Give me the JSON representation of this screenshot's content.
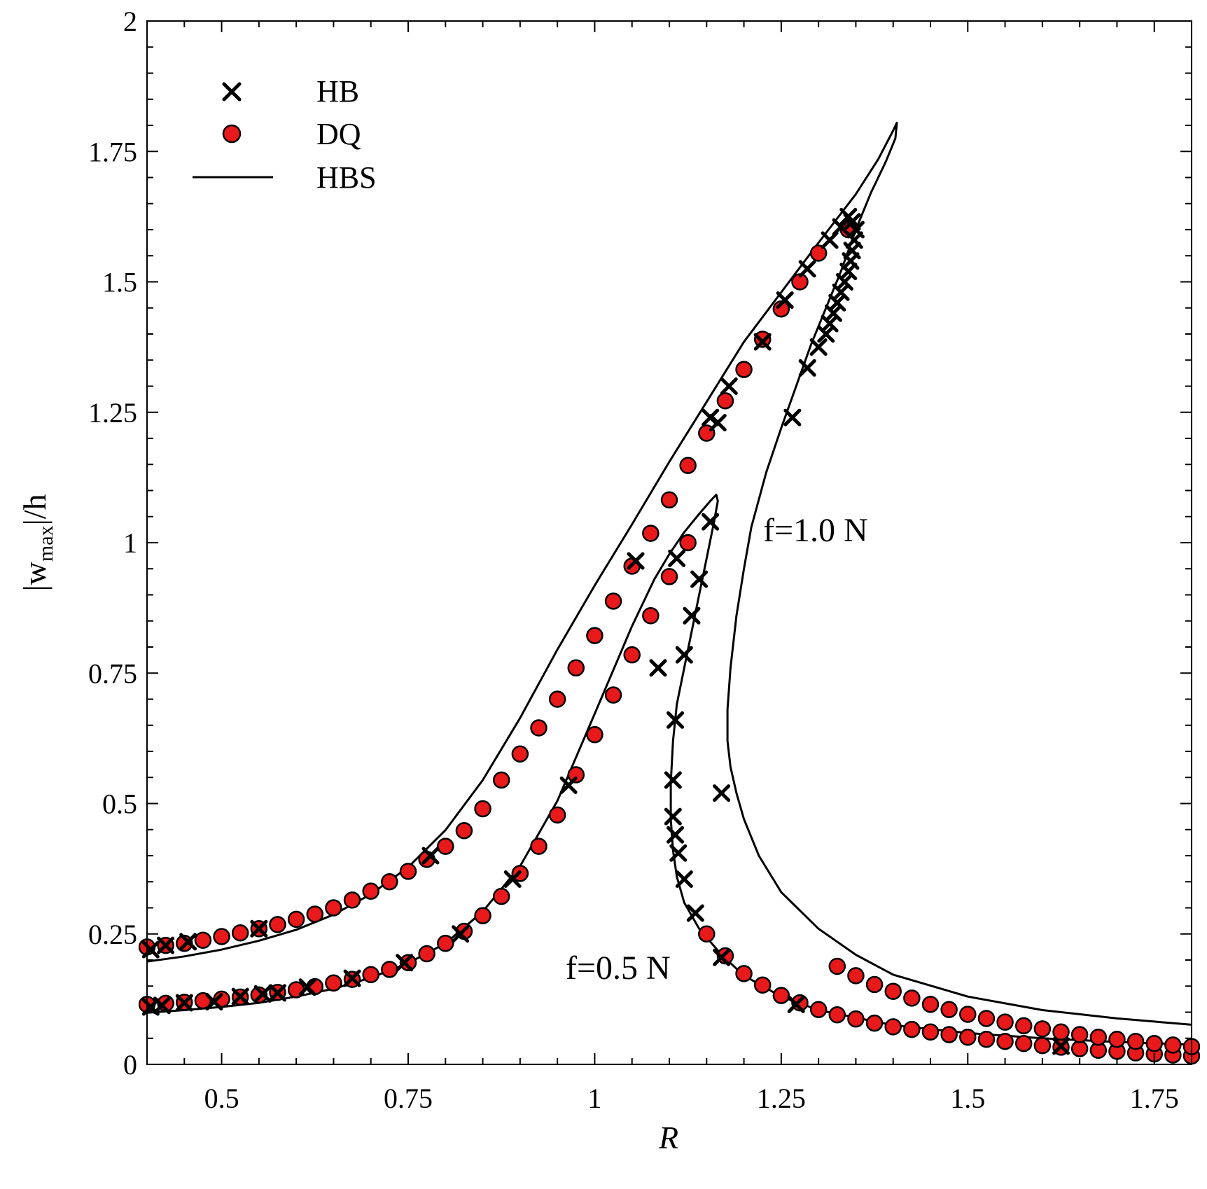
{
  "chart_data": {
    "type": "scatter",
    "title": "",
    "xlabel": "R",
    "ylabel_main": "|w",
    "ylabel_sub": "max",
    "ylabel_tail": "|/h",
    "xlim": [
      0.4,
      1.8
    ],
    "ylim": [
      0,
      2
    ],
    "x_ticks": [
      0.5,
      0.75,
      1,
      1.25,
      1.5,
      1.75
    ],
    "x_tick_labels": [
      "0.5",
      "0.75",
      "1",
      "1.25",
      "1.5",
      "1.75"
    ],
    "y_ticks": [
      0,
      0.25,
      0.5,
      0.75,
      1,
      1.25,
      1.5,
      1.75,
      2
    ],
    "y_tick_labels": [
      "0",
      "0.25",
      "0.5",
      "0.75",
      "1",
      "1.25",
      "1.5",
      "1.75",
      "2"
    ],
    "legend_position": "top-left",
    "legend": [
      {
        "label": "HB",
        "marker": "cross"
      },
      {
        "label": "DQ",
        "marker": "circle"
      },
      {
        "label": "HBS",
        "marker": "line"
      }
    ],
    "annotations": [
      {
        "text": "f=1.0 N",
        "x": 1.31,
        "y": 1.0
      },
      {
        "text": "f=0.5 N",
        "x": 1.05,
        "y": 0.19
      }
    ],
    "colors": {
      "dq_fill": "#e8191a",
      "dq_edge": "#000000",
      "line": "#000000",
      "hb": "#000000"
    },
    "series": [
      {
        "name": "HBS f=1.0 N",
        "type": "line",
        "points": [
          [
            0.4,
            0.197
          ],
          [
            0.45,
            0.207
          ],
          [
            0.5,
            0.22
          ],
          [
            0.55,
            0.237
          ],
          [
            0.6,
            0.258
          ],
          [
            0.65,
            0.287
          ],
          [
            0.7,
            0.326
          ],
          [
            0.75,
            0.378
          ],
          [
            0.8,
            0.449
          ],
          [
            0.85,
            0.545
          ],
          [
            0.9,
            0.664
          ],
          [
            0.95,
            0.795
          ],
          [
            1.0,
            0.918
          ],
          [
            1.05,
            1.035
          ],
          [
            1.1,
            1.155
          ],
          [
            1.15,
            1.27
          ],
          [
            1.2,
            1.385
          ],
          [
            1.25,
            1.48
          ],
          [
            1.3,
            1.575
          ],
          [
            1.35,
            1.668
          ],
          [
            1.38,
            1.735
          ],
          [
            1.4,
            1.79
          ],
          [
            1.405,
            1.805
          ],
          [
            1.403,
            1.775
          ],
          [
            1.39,
            1.73
          ],
          [
            1.37,
            1.67
          ],
          [
            1.35,
            1.6
          ],
          [
            1.33,
            1.52
          ],
          [
            1.31,
            1.45
          ],
          [
            1.29,
            1.38
          ],
          [
            1.27,
            1.3
          ],
          [
            1.25,
            1.22
          ],
          [
            1.23,
            1.135
          ],
          [
            1.21,
            1.03
          ],
          [
            1.2,
            0.95
          ],
          [
            1.19,
            0.86
          ],
          [
            1.182,
            0.76
          ],
          [
            1.178,
            0.68
          ],
          [
            1.178,
            0.62
          ],
          [
            1.182,
            0.57
          ],
          [
            1.19,
            0.52
          ],
          [
            1.2,
            0.47
          ],
          [
            1.22,
            0.4
          ],
          [
            1.25,
            0.33
          ],
          [
            1.3,
            0.26
          ],
          [
            1.35,
            0.21
          ],
          [
            1.4,
            0.172
          ],
          [
            1.5,
            0.13
          ],
          [
            1.6,
            0.104
          ],
          [
            1.7,
            0.088
          ],
          [
            1.8,
            0.076
          ]
        ]
      },
      {
        "name": "HBS f=0.5 N",
        "type": "line",
        "points": [
          [
            0.4,
            0.099
          ],
          [
            0.45,
            0.104
          ],
          [
            0.5,
            0.11
          ],
          [
            0.55,
            0.118
          ],
          [
            0.6,
            0.13
          ],
          [
            0.65,
            0.145
          ],
          [
            0.7,
            0.166
          ],
          [
            0.75,
            0.194
          ],
          [
            0.8,
            0.232
          ],
          [
            0.85,
            0.293
          ],
          [
            0.9,
            0.38
          ],
          [
            0.95,
            0.505
          ],
          [
            1.0,
            0.672
          ],
          [
            1.05,
            0.84
          ],
          [
            1.08,
            0.93
          ],
          [
            1.1,
            0.978
          ],
          [
            1.12,
            1.02
          ],
          [
            1.14,
            1.055
          ],
          [
            1.155,
            1.08
          ],
          [
            1.163,
            1.092
          ],
          [
            1.165,
            1.08
          ],
          [
            1.16,
            1.04
          ],
          [
            1.15,
            0.97
          ],
          [
            1.14,
            0.9
          ],
          [
            1.13,
            0.83
          ],
          [
            1.12,
            0.76
          ],
          [
            1.11,
            0.69
          ],
          [
            1.105,
            0.62
          ],
          [
            1.102,
            0.54
          ],
          [
            1.102,
            0.47
          ],
          [
            1.105,
            0.41
          ],
          [
            1.11,
            0.36
          ],
          [
            1.12,
            0.31
          ],
          [
            1.14,
            0.26
          ],
          [
            1.17,
            0.21
          ],
          [
            1.2,
            0.17
          ],
          [
            1.25,
            0.13
          ],
          [
            1.3,
            0.104
          ],
          [
            1.4,
            0.075
          ],
          [
            1.5,
            0.06
          ],
          [
            1.6,
            0.05
          ],
          [
            1.7,
            0.043
          ],
          [
            1.8,
            0.038
          ]
        ]
      },
      {
        "name": "DQ",
        "type": "scatter",
        "marker": "circle",
        "points": [
          [
            0.4,
            0.225
          ],
          [
            0.425,
            0.228
          ],
          [
            0.45,
            0.232
          ],
          [
            0.475,
            0.238
          ],
          [
            0.5,
            0.245
          ],
          [
            0.525,
            0.252
          ],
          [
            0.55,
            0.26
          ],
          [
            0.575,
            0.268
          ],
          [
            0.6,
            0.278
          ],
          [
            0.625,
            0.288
          ],
          [
            0.65,
            0.3
          ],
          [
            0.675,
            0.315
          ],
          [
            0.7,
            0.332
          ],
          [
            0.725,
            0.35
          ],
          [
            0.75,
            0.37
          ],
          [
            0.775,
            0.393
          ],
          [
            0.8,
            0.418
          ],
          [
            0.825,
            0.448
          ],
          [
            0.85,
            0.49
          ],
          [
            0.875,
            0.545
          ],
          [
            0.9,
            0.595
          ],
          [
            0.925,
            0.645
          ],
          [
            0.95,
            0.7
          ],
          [
            0.975,
            0.76
          ],
          [
            1.0,
            0.822
          ],
          [
            1.025,
            0.888
          ],
          [
            1.05,
            0.955
          ],
          [
            1.075,
            1.018
          ],
          [
            1.1,
            1.082
          ],
          [
            1.125,
            1.148
          ],
          [
            1.15,
            1.21
          ],
          [
            1.175,
            1.272
          ],
          [
            1.2,
            1.332
          ],
          [
            1.225,
            1.39
          ],
          [
            1.25,
            1.448
          ],
          [
            1.275,
            1.5
          ],
          [
            1.3,
            1.555
          ],
          [
            1.34,
            1.6
          ],
          [
            0.4,
            0.115
          ],
          [
            0.425,
            0.117
          ],
          [
            0.45,
            0.119
          ],
          [
            0.475,
            0.122
          ],
          [
            0.5,
            0.125
          ],
          [
            0.525,
            0.129
          ],
          [
            0.55,
            0.133
          ],
          [
            0.575,
            0.138
          ],
          [
            0.6,
            0.143
          ],
          [
            0.625,
            0.149
          ],
          [
            0.65,
            0.156
          ],
          [
            0.675,
            0.163
          ],
          [
            0.7,
            0.172
          ],
          [
            0.725,
            0.182
          ],
          [
            0.75,
            0.195
          ],
          [
            0.775,
            0.212
          ],
          [
            0.8,
            0.232
          ],
          [
            0.825,
            0.255
          ],
          [
            0.85,
            0.285
          ],
          [
            0.875,
            0.322
          ],
          [
            0.9,
            0.366
          ],
          [
            0.925,
            0.418
          ],
          [
            0.95,
            0.478
          ],
          [
            0.975,
            0.555
          ],
          [
            1.0,
            0.632
          ],
          [
            1.025,
            0.708
          ],
          [
            1.05,
            0.785
          ],
          [
            1.075,
            0.86
          ],
          [
            1.1,
            0.935
          ],
          [
            1.125,
            1.0
          ],
          [
            1.15,
            0.25
          ],
          [
            1.175,
            0.208
          ],
          [
            1.2,
            0.174
          ],
          [
            1.225,
            0.152
          ],
          [
            1.25,
            0.132
          ],
          [
            1.275,
            0.118
          ],
          [
            1.3,
            0.105
          ],
          [
            1.325,
            0.095
          ],
          [
            1.35,
            0.087
          ],
          [
            1.375,
            0.079
          ],
          [
            1.4,
            0.072
          ],
          [
            1.425,
            0.067
          ],
          [
            1.45,
            0.062
          ],
          [
            1.475,
            0.057
          ],
          [
            1.5,
            0.052
          ],
          [
            1.525,
            0.048
          ],
          [
            1.55,
            0.044
          ],
          [
            1.575,
            0.04
          ],
          [
            1.6,
            0.036
          ],
          [
            1.625,
            0.033
          ],
          [
            1.65,
            0.03
          ],
          [
            1.675,
            0.027
          ],
          [
            1.7,
            0.025
          ],
          [
            1.725,
            0.022
          ],
          [
            1.75,
            0.02
          ],
          [
            1.775,
            0.018
          ],
          [
            1.8,
            0.016
          ],
          [
            1.325,
            0.188
          ],
          [
            1.35,
            0.17
          ],
          [
            1.375,
            0.153
          ],
          [
            1.4,
            0.14
          ],
          [
            1.425,
            0.127
          ],
          [
            1.45,
            0.115
          ],
          [
            1.475,
            0.105
          ],
          [
            1.5,
            0.096
          ],
          [
            1.525,
            0.088
          ],
          [
            1.55,
            0.081
          ],
          [
            1.575,
            0.074
          ],
          [
            1.6,
            0.068
          ],
          [
            1.625,
            0.062
          ],
          [
            1.65,
            0.057
          ],
          [
            1.675,
            0.052
          ],
          [
            1.7,
            0.048
          ],
          [
            1.725,
            0.044
          ],
          [
            1.75,
            0.04
          ],
          [
            1.775,
            0.037
          ],
          [
            1.8,
            0.034
          ]
        ]
      },
      {
        "name": "HB",
        "type": "scatter",
        "marker": "cross",
        "points": [
          [
            0.405,
            0.22
          ],
          [
            0.425,
            0.228
          ],
          [
            0.455,
            0.235
          ],
          [
            0.55,
            0.26
          ],
          [
            0.78,
            0.4
          ],
          [
            1.055,
            0.965
          ],
          [
            1.155,
            1.24
          ],
          [
            1.165,
            1.23
          ],
          [
            1.18,
            1.3
          ],
          [
            1.225,
            1.385
          ],
          [
            1.255,
            1.465
          ],
          [
            1.285,
            1.525
          ],
          [
            1.315,
            1.58
          ],
          [
            1.33,
            1.605
          ],
          [
            1.34,
            1.625
          ],
          [
            1.345,
            1.615
          ],
          [
            1.35,
            1.6
          ],
          [
            1.348,
            1.58
          ],
          [
            1.345,
            1.56
          ],
          [
            1.343,
            1.54
          ],
          [
            1.34,
            1.52
          ],
          [
            1.335,
            1.5
          ],
          [
            1.33,
            1.48
          ],
          [
            1.325,
            1.46
          ],
          [
            1.32,
            1.44
          ],
          [
            1.315,
            1.42
          ],
          [
            1.31,
            1.4
          ],
          [
            1.3,
            1.375
          ],
          [
            1.285,
            1.335
          ],
          [
            1.265,
            1.24
          ],
          [
            1.17,
            0.52
          ],
          [
            1.27,
            0.115
          ],
          [
            1.625,
            0.035
          ],
          [
            0.405,
            0.11
          ],
          [
            0.42,
            0.113
          ],
          [
            0.45,
            0.118
          ],
          [
            0.49,
            0.12
          ],
          [
            0.525,
            0.13
          ],
          [
            0.555,
            0.135
          ],
          [
            0.575,
            0.137
          ],
          [
            0.615,
            0.148
          ],
          [
            0.675,
            0.165
          ],
          [
            0.745,
            0.195
          ],
          [
            0.82,
            0.25
          ],
          [
            0.89,
            0.355
          ],
          [
            0.965,
            0.535
          ],
          [
            1.085,
            0.76
          ],
          [
            1.11,
            0.97
          ],
          [
            1.155,
            1.04
          ],
          [
            1.14,
            0.93
          ],
          [
            1.13,
            0.86
          ],
          [
            1.12,
            0.785
          ],
          [
            1.108,
            0.66
          ],
          [
            1.105,
            0.545
          ],
          [
            1.105,
            0.475
          ],
          [
            1.108,
            0.44
          ],
          [
            1.112,
            0.405
          ],
          [
            1.12,
            0.355
          ],
          [
            1.135,
            0.29
          ],
          [
            1.17,
            0.205
          ]
        ]
      }
    ]
  }
}
